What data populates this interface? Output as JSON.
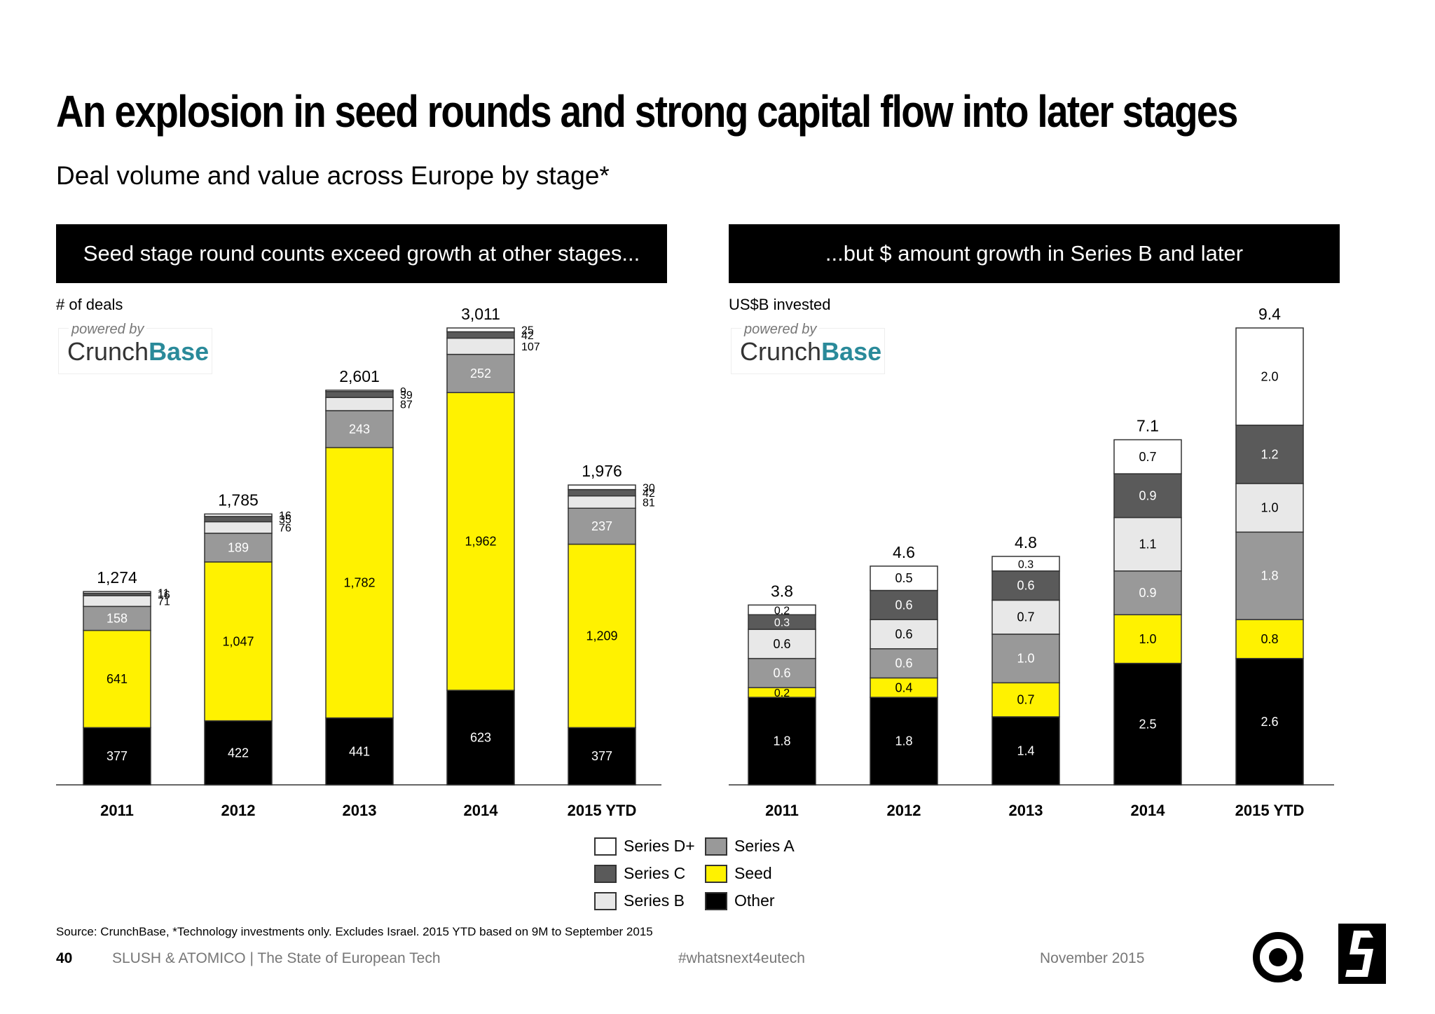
{
  "title": "An explosion in seed rounds and strong capital flow into later stages",
  "subtitle": "Deal volume and value across Europe by stage*",
  "powered_by": "powered by",
  "crunchbase": {
    "part1": "Crunch",
    "part2": "Base"
  },
  "colors": {
    "series_d": "#ffffff",
    "series_c": "#5a5a5a",
    "series_b": "#e8e8e8",
    "series_a": "#999999",
    "seed": "#fff200",
    "other": "#000000"
  },
  "legend": [
    {
      "name": "Series D+",
      "key": "series_d"
    },
    {
      "name": "Series C",
      "key": "series_c"
    },
    {
      "name": "Series B",
      "key": "series_b"
    },
    {
      "name": "Series A",
      "key": "series_a"
    },
    {
      "name": "Seed",
      "key": "seed"
    },
    {
      "name": "Other",
      "key": "other"
    }
  ],
  "chart_data": [
    {
      "type": "bar",
      "stacked": true,
      "heading": "Seed stage round counts exceed growth at other stages...",
      "ylabel": "# of deals",
      "categories": [
        "2011",
        "2012",
        "2013",
        "2014",
        "2015 YTD"
      ],
      "totals": [
        "1,274",
        "1,785",
        "2,601",
        "3,011",
        "1,976"
      ],
      "series": [
        {
          "name": "Other",
          "key": "other",
          "values": [
            377,
            422,
            441,
            623,
            377
          ],
          "labels": [
            "377",
            "422",
            "441",
            "623",
            "377"
          ]
        },
        {
          "name": "Seed",
          "key": "seed",
          "values": [
            641,
            1047,
            1782,
            1962,
            1209
          ],
          "labels": [
            "641",
            "1,047",
            "1,782",
            "1,962",
            "1,209"
          ]
        },
        {
          "name": "Series A",
          "key": "series_a",
          "values": [
            158,
            189,
            243,
            252,
            237
          ],
          "labels": [
            "158",
            "189",
            "243",
            "252",
            "237"
          ]
        },
        {
          "name": "Series B",
          "key": "series_b",
          "values": [
            71,
            76,
            87,
            107,
            81
          ],
          "labels": [
            "71",
            "76",
            "87",
            "107",
            "81"
          ]
        },
        {
          "name": "Series C",
          "key": "series_c",
          "values": [
            16,
            35,
            39,
            42,
            42
          ],
          "labels": [
            "16",
            "35",
            "39",
            "42",
            "42"
          ]
        },
        {
          "name": "Series D+",
          "key": "series_d",
          "values": [
            11,
            16,
            9,
            25,
            30
          ],
          "labels": [
            "11",
            "16",
            "9",
            "25",
            "30"
          ]
        }
      ],
      "ylim": [
        0,
        3011
      ]
    },
    {
      "type": "bar",
      "stacked": true,
      "heading": "...but $ amount growth in Series B and later",
      "ylabel": "US$B invested",
      "categories": [
        "2011",
        "2012",
        "2013",
        "2014",
        "2015 YTD"
      ],
      "totals": [
        "3.8",
        "4.6",
        "4.8",
        "7.1",
        "9.4"
      ],
      "series": [
        {
          "name": "Other",
          "key": "other",
          "values": [
            1.8,
            1.8,
            1.4,
            2.5,
            2.6
          ],
          "labels": [
            "1.8",
            "1.8",
            "1.4",
            "2.5",
            "2.6"
          ]
        },
        {
          "name": "Seed",
          "key": "seed",
          "values": [
            0.2,
            0.4,
            0.7,
            1.0,
            0.8
          ],
          "labels": [
            "0.2",
            "0.4",
            "0.7",
            "1.0",
            "0.8"
          ]
        },
        {
          "name": "Series A",
          "key": "series_a",
          "values": [
            0.6,
            0.6,
            1.0,
            0.9,
            1.8
          ],
          "labels": [
            "0.6",
            "0.6",
            "1.0",
            "0.9",
            "1.8"
          ]
        },
        {
          "name": "Series B",
          "key": "series_b",
          "values": [
            0.6,
            0.6,
            0.7,
            1.1,
            1.0
          ],
          "labels": [
            "0.6",
            "0.6",
            "0.7",
            "1.1",
            "1.0"
          ]
        },
        {
          "name": "Series C",
          "key": "series_c",
          "values": [
            0.3,
            0.6,
            0.6,
            0.9,
            1.2
          ],
          "labels": [
            "0.3",
            "0.6",
            "0.6",
            "0.9",
            "1.2"
          ]
        },
        {
          "name": "Series D+",
          "key": "series_d",
          "values": [
            0.2,
            0.5,
            0.3,
            0.7,
            2.0
          ],
          "labels": [
            "0.2",
            "0.5",
            "0.3",
            "0.7",
            "2.0"
          ]
        }
      ],
      "ylim": [
        0,
        9.4
      ]
    }
  ],
  "source": "Source: CrunchBase, *Technology investments only. Excludes Israel. 2015 YTD based on 9M to September 2015",
  "footer": {
    "page": "40",
    "org": "SLUSH & ATOMICO",
    "separator": "|",
    "report": "The State of European Tech",
    "hashtag": "#whatsnext4eutech",
    "date": "November 2015"
  }
}
